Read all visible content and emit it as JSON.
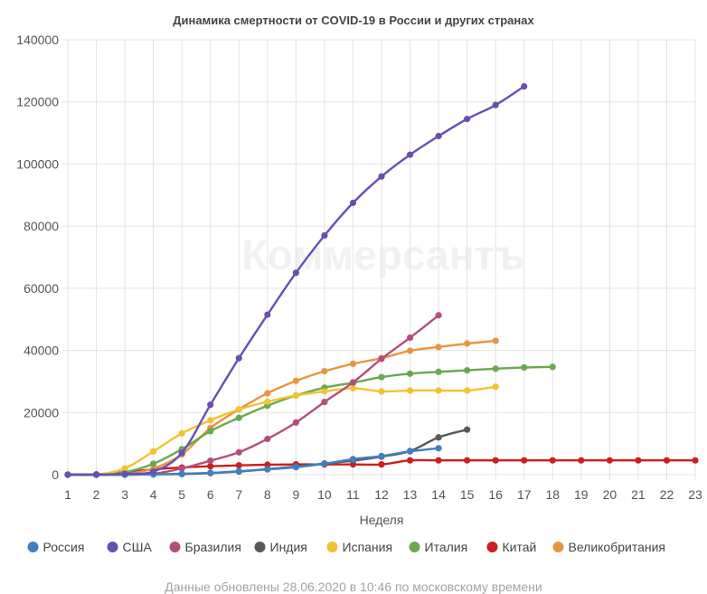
{
  "chart_data": {
    "type": "line",
    "title": "Динамика смертности от COVID-19 в России и других странах",
    "xlabel": "Неделя",
    "ylabel": "",
    "x_ticks": [
      1,
      2,
      3,
      4,
      5,
      6,
      7,
      8,
      9,
      10,
      11,
      12,
      13,
      14,
      15,
      16,
      17,
      18,
      19,
      20,
      21,
      22,
      23
    ],
    "y_ticks": [
      "0",
      "20000",
      "40000",
      "60000",
      "80000",
      "100000",
      "120000",
      "140000"
    ],
    "xlim": [
      1,
      23
    ],
    "ylim": [
      0,
      140000
    ],
    "grid": true,
    "legend_position": "bottom",
    "watermark": "Коммерсантъ",
    "series": [
      {
        "name": "Россия",
        "color": "#3f80c4",
        "x": [
          1,
          2,
          3,
          4,
          5,
          6,
          7,
          8,
          9,
          10,
          11,
          12,
          13,
          14
        ],
        "values": [
          0,
          0,
          0,
          100,
          300,
          600,
          1100,
          1700,
          2400,
          3500,
          5000,
          6000,
          7500,
          8500
        ]
      },
      {
        "name": "США",
        "color": "#6a4fb3",
        "x": [
          1,
          2,
          3,
          4,
          5,
          6,
          7,
          8,
          9,
          10,
          11,
          12,
          13,
          14,
          15,
          16,
          17
        ],
        "values": [
          0,
          0,
          300,
          1000,
          7000,
          22500,
          37500,
          51500,
          65000,
          77000,
          87500,
          96000,
          103000,
          109000,
          114500,
          119000,
          125000
        ]
      },
      {
        "name": "Бразилия",
        "color": "#b34e7c",
        "x": [
          1,
          2,
          3,
          4,
          5,
          6,
          7,
          8,
          9,
          10,
          11,
          12,
          13,
          14
        ],
        "values": [
          0,
          0,
          0,
          300,
          2000,
          4500,
          7200,
          11500,
          16800,
          23400,
          29700,
          37300,
          44100,
          51300
        ]
      },
      {
        "name": "Индия",
        "color": "#595959",
        "x": [
          1,
          2,
          3,
          4,
          5,
          6,
          7,
          8,
          9,
          10,
          11,
          12,
          13,
          14,
          15
        ],
        "values": [
          0,
          0,
          0,
          100,
          200,
          500,
          1000,
          1800,
          2600,
          3600,
          4500,
          5800,
          7600,
          12000,
          14500
        ]
      },
      {
        "name": "Испания",
        "color": "#f2c330",
        "x": [
          1,
          2,
          3,
          4,
          5,
          6,
          7,
          8,
          9,
          10,
          11,
          12,
          13,
          14,
          15,
          16
        ],
        "values": [
          0,
          0,
          2000,
          7500,
          13300,
          17500,
          21000,
          23500,
          25500,
          26800,
          27800,
          26800,
          27100,
          27100,
          27100,
          28300
        ]
      },
      {
        "name": "Италия",
        "color": "#69a94e",
        "x": [
          1,
          2,
          3,
          4,
          5,
          6,
          7,
          8,
          9,
          10,
          11,
          12,
          13,
          14,
          15,
          16,
          17,
          18
        ],
        "values": [
          0,
          0,
          800,
          3500,
          8200,
          14000,
          18300,
          22200,
          25500,
          28000,
          29600,
          31400,
          32500,
          33100,
          33600,
          34100,
          34500,
          34700
        ]
      },
      {
        "name": "Китай",
        "color": "#cc1f1f",
        "x": [
          1,
          2,
          3,
          4,
          5,
          6,
          7,
          8,
          9,
          10,
          11,
          12,
          13,
          14,
          15,
          16,
          17,
          18,
          19,
          20,
          21,
          22,
          23
        ],
        "values": [
          0,
          100,
          800,
          1700,
          2300,
          2700,
          3000,
          3200,
          3300,
          3300,
          3300,
          3300,
          4600,
          4600,
          4600,
          4600,
          4600,
          4600,
          4600,
          4600,
          4600,
          4600,
          4600
        ]
      },
      {
        "name": "Великобритания",
        "color": "#e89540",
        "x": [
          1,
          2,
          3,
          4,
          5,
          6,
          7,
          8,
          9,
          10,
          11,
          12,
          13,
          14,
          15,
          16
        ],
        "values": [
          0,
          0,
          200,
          2000,
          6500,
          15000,
          21000,
          26200,
          30200,
          33300,
          35700,
          37500,
          39900,
          41100,
          42200,
          43100
        ]
      }
    ]
  },
  "footer": "Данные обновлены 28.06.2020 в 10:46 по московскому времени"
}
